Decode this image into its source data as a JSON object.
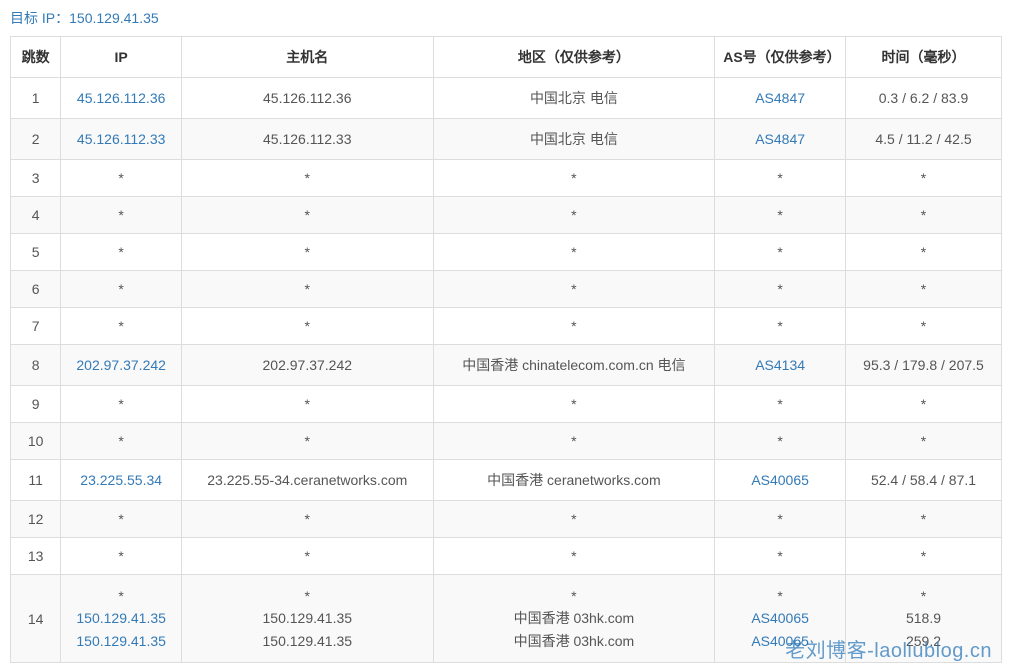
{
  "target_ip_label": "目标 IP：",
  "target_ip_value": "150.129.41.35",
  "columns": {
    "hop": "跳数",
    "ip": "IP",
    "host": "主机名",
    "region": "地区（仅供参考）",
    "as": "AS号（仅供参考）",
    "time": "时间（毫秒）"
  },
  "rows": [
    {
      "hop": "1",
      "ip": [
        "45.126.112.36"
      ],
      "ip_link": [
        true
      ],
      "host": [
        "45.126.112.36"
      ],
      "region": [
        "中国北京 电信"
      ],
      "as": [
        "AS4847"
      ],
      "as_link": [
        true
      ],
      "time": [
        "0.3 / 6.2 / 83.9"
      ]
    },
    {
      "hop": "2",
      "ip": [
        "45.126.112.33"
      ],
      "ip_link": [
        true
      ],
      "host": [
        "45.126.112.33"
      ],
      "region": [
        "中国北京 电信"
      ],
      "as": [
        "AS4847"
      ],
      "as_link": [
        true
      ],
      "time": [
        "4.5 / 11.2 / 42.5"
      ]
    },
    {
      "hop": "3",
      "ip": [
        "*"
      ],
      "ip_link": [
        false
      ],
      "host": [
        "*"
      ],
      "region": [
        "*"
      ],
      "as": [
        "*"
      ],
      "as_link": [
        false
      ],
      "time": [
        "*"
      ]
    },
    {
      "hop": "4",
      "ip": [
        "*"
      ],
      "ip_link": [
        false
      ],
      "host": [
        "*"
      ],
      "region": [
        "*"
      ],
      "as": [
        "*"
      ],
      "as_link": [
        false
      ],
      "time": [
        "*"
      ]
    },
    {
      "hop": "5",
      "ip": [
        "*"
      ],
      "ip_link": [
        false
      ],
      "host": [
        "*"
      ],
      "region": [
        "*"
      ],
      "as": [
        "*"
      ],
      "as_link": [
        false
      ],
      "time": [
        "*"
      ]
    },
    {
      "hop": "6",
      "ip": [
        "*"
      ],
      "ip_link": [
        false
      ],
      "host": [
        "*"
      ],
      "region": [
        "*"
      ],
      "as": [
        "*"
      ],
      "as_link": [
        false
      ],
      "time": [
        "*"
      ]
    },
    {
      "hop": "7",
      "ip": [
        "*"
      ],
      "ip_link": [
        false
      ],
      "host": [
        "*"
      ],
      "region": [
        "*"
      ],
      "as": [
        "*"
      ],
      "as_link": [
        false
      ],
      "time": [
        "*"
      ]
    },
    {
      "hop": "8",
      "ip": [
        "202.97.37.242"
      ],
      "ip_link": [
        true
      ],
      "host": [
        "202.97.37.242"
      ],
      "region": [
        "中国香港 chinatelecom.com.cn 电信"
      ],
      "as": [
        "AS4134"
      ],
      "as_link": [
        true
      ],
      "time": [
        "95.3 / 179.8 / 207.5"
      ]
    },
    {
      "hop": "9",
      "ip": [
        "*"
      ],
      "ip_link": [
        false
      ],
      "host": [
        "*"
      ],
      "region": [
        "*"
      ],
      "as": [
        "*"
      ],
      "as_link": [
        false
      ],
      "time": [
        "*"
      ]
    },
    {
      "hop": "10",
      "ip": [
        "*"
      ],
      "ip_link": [
        false
      ],
      "host": [
        "*"
      ],
      "region": [
        "*"
      ],
      "as": [
        "*"
      ],
      "as_link": [
        false
      ],
      "time": [
        "*"
      ]
    },
    {
      "hop": "11",
      "ip": [
        "23.225.55.34"
      ],
      "ip_link": [
        true
      ],
      "host": [
        "23.225.55-34.ceranetworks.com"
      ],
      "region": [
        "中国香港 ceranetworks.com"
      ],
      "as": [
        "AS40065"
      ],
      "as_link": [
        true
      ],
      "time": [
        "52.4 / 58.4 / 87.1"
      ]
    },
    {
      "hop": "12",
      "ip": [
        "*"
      ],
      "ip_link": [
        false
      ],
      "host": [
        "*"
      ],
      "region": [
        "*"
      ],
      "as": [
        "*"
      ],
      "as_link": [
        false
      ],
      "time": [
        "*"
      ]
    },
    {
      "hop": "13",
      "ip": [
        "*"
      ],
      "ip_link": [
        false
      ],
      "host": [
        "*"
      ],
      "region": [
        "*"
      ],
      "as": [
        "*"
      ],
      "as_link": [
        false
      ],
      "time": [
        "*"
      ]
    },
    {
      "hop": "14",
      "ip": [
        "*",
        "150.129.41.35",
        "150.129.41.35"
      ],
      "ip_link": [
        false,
        true,
        true
      ],
      "host": [
        "*",
        "150.129.41.35",
        "150.129.41.35"
      ],
      "region": [
        "*",
        "中国香港 03hk.com",
        "中国香港 03hk.com"
      ],
      "as": [
        "*",
        "AS40065",
        "AS40065"
      ],
      "as_link": [
        false,
        true,
        true
      ],
      "time": [
        "*",
        "518.9",
        "259.2"
      ]
    }
  ],
  "watermark": "老刘博客-laoliublog.cn",
  "colors": {
    "link": "#337ab7",
    "border": "#dddddd",
    "row_alt": "#f9f9f9",
    "text": "#555555",
    "header_text": "#333333",
    "watermark": "#2173b8"
  }
}
